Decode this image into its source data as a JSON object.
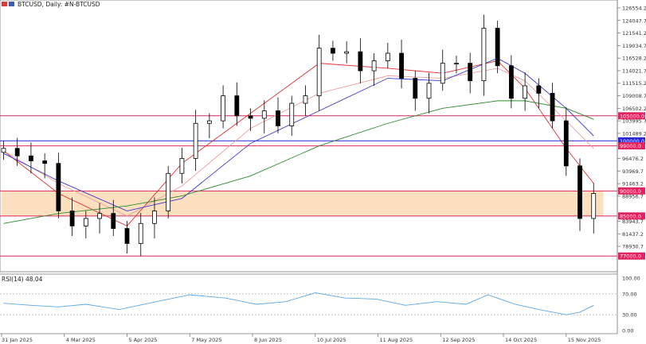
{
  "header": {
    "symbol_label": "BTCUSD, Daily:  #N-BTCUSD"
  },
  "rsi_pane": {
    "label": "RSI(14) 48.04",
    "levels": [
      "100.00",
      "70.00",
      "30.00",
      "0.00"
    ]
  },
  "colors": {
    "background": "#ffffff",
    "candles": "#000000",
    "zone_fill": "#fde0bf",
    "resistance_line": "#e0245e",
    "round_level_line": "#2626d9",
    "ma_fast": "#e03030",
    "ma_slow_pink": "#f0a0a0",
    "ma_blue": "#3a3ad0",
    "ma_green": "#2e8b2e",
    "rsi_line": "#5aa7e6"
  },
  "chart_data": {
    "type": "line",
    "title": "BTCUSD, Daily",
    "xlabel": "",
    "ylabel": "",
    "y_scale": "linear",
    "ylim": [
      74500,
      127500
    ],
    "grid": false,
    "price_ticks": [
      "126554.2",
      "124047.7",
      "121541.2",
      "119034.7",
      "116528.2",
      "114021.7",
      "111515.2",
      "109008.7",
      "106502.2",
      "103995.7",
      "101489.2",
      "96476.2",
      "93969.7",
      "91463.2",
      "88956.7",
      "83943.7",
      "81437.2",
      "78930.7"
    ],
    "date_ticks": [
      {
        "label": "31 Jan 2025",
        "x": "2025-01-31"
      },
      {
        "label": "4 Mar 2025",
        "x": "2025-03-04"
      },
      {
        "label": "5 Apr 2025",
        "x": "2025-04-05"
      },
      {
        "label": "7 May 2025",
        "x": "2025-05-07"
      },
      {
        "label": "8 Jun 2025",
        "x": "2025-06-08"
      },
      {
        "label": "10 Jul 2025",
        "x": "2025-07-10"
      },
      {
        "label": "11 Aug 2025",
        "x": "2025-08-11"
      },
      {
        "label": "12 Sep 2025",
        "x": "2025-09-12"
      },
      {
        "label": "14 Oct 2025",
        "x": "2025-10-14"
      },
      {
        "label": "15 Nov 2025",
        "x": "2025-11-15"
      }
    ],
    "horizontal_levels": [
      {
        "label": "105000.0",
        "value": 105000,
        "color": "#e0245e"
      },
      {
        "label": "100000.0",
        "value": 100000,
        "color": "#2626d9"
      },
      {
        "label": "99000.0",
        "value": 99000,
        "color": "#e0245e"
      },
      {
        "label": "90000.0",
        "value": 90000,
        "color": "#e0245e"
      },
      {
        "label": "85000.0",
        "value": 85000,
        "color": "#e0245e"
      },
      {
        "label": "77000.0",
        "value": 77000,
        "color": "#e0245e"
      }
    ],
    "zone": {
      "from": 85000,
      "to": 90000,
      "x_start": "2025-01-31",
      "x_end": "2025-12-04"
    },
    "series": [
      {
        "type": "candlestick",
        "x": [
          "2025-02-01",
          "2025-02-08",
          "2025-02-15",
          "2025-02-22",
          "2025-03-01",
          "2025-03-08",
          "2025-03-15",
          "2025-03-22",
          "2025-03-29",
          "2025-04-05",
          "2025-04-12",
          "2025-04-19",
          "2025-04-26",
          "2025-05-03",
          "2025-05-10",
          "2025-05-17",
          "2025-05-24",
          "2025-05-31",
          "2025-06-07",
          "2025-06-14",
          "2025-06-21",
          "2025-06-28",
          "2025-07-05",
          "2025-07-12",
          "2025-07-19",
          "2025-07-26",
          "2025-08-02",
          "2025-08-09",
          "2025-08-16",
          "2025-08-23",
          "2025-08-30",
          "2025-09-06",
          "2025-09-13",
          "2025-09-20",
          "2025-09-27",
          "2025-10-04",
          "2025-10-11",
          "2025-10-18",
          "2025-10-25",
          "2025-11-01",
          "2025-11-08",
          "2025-11-15",
          "2025-11-22",
          "2025-11-29"
        ],
        "close": [
          98500,
          97000,
          96000,
          95500,
          86000,
          83000,
          84500,
          85500,
          82500,
          79500,
          83500,
          86000,
          93500,
          96500,
          103500,
          104000,
          109000,
          105000,
          104500,
          106000,
          103000,
          107500,
          109000,
          118500,
          117500,
          117800,
          114000,
          116000,
          117500,
          112500,
          108500,
          111500,
          115500,
          115500,
          112000,
          122500,
          115000,
          108500,
          111000,
          109500,
          104000,
          95000,
          84500,
          89500
        ]
      },
      {
        "name": "",
        "type": "line",
        "x": [
          "2025-02-01",
          "2025-03-01",
          "2025-04-05",
          "2025-05-03",
          "2025-06-07",
          "2025-07-12",
          "2025-08-16",
          "2025-09-13",
          "2025-10-11",
          "2025-10-25",
          "2025-11-15",
          "2025-11-29"
        ],
        "values": [
          98000,
          89500,
          83000,
          95500,
          105500,
          115500,
          114500,
          113500,
          116000,
          110500,
          98500,
          91500
        ]
      },
      {
        "name": "",
        "type": "line",
        "x": [
          "2025-02-01",
          "2025-03-01",
          "2025-04-05",
          "2025-05-03",
          "2025-06-07",
          "2025-07-12",
          "2025-08-16",
          "2025-09-13",
          "2025-10-11",
          "2025-10-25",
          "2025-11-15",
          "2025-11-29"
        ],
        "values": [
          98000,
          91500,
          85000,
          91000,
          102500,
          109500,
          113000,
          112500,
          114500,
          112000,
          104000,
          98500
        ]
      },
      {
        "name": "",
        "type": "line",
        "x": [
          "2025-02-01",
          "2025-03-01",
          "2025-04-05",
          "2025-05-03",
          "2025-06-07",
          "2025-07-12",
          "2025-08-16",
          "2025-09-13",
          "2025-10-11",
          "2025-10-25",
          "2025-11-15",
          "2025-11-29"
        ],
        "values": [
          97500,
          92000,
          86000,
          88500,
          99500,
          106000,
          112500,
          112000,
          116500,
          113500,
          106500,
          101000
        ]
      },
      {
        "name": "",
        "type": "line",
        "x": [
          "2025-02-01",
          "2025-03-01",
          "2025-04-05",
          "2025-05-03",
          "2025-06-07",
          "2025-07-12",
          "2025-08-16",
          "2025-09-13",
          "2025-10-11",
          "2025-10-25",
          "2025-11-15",
          "2025-11-29"
        ],
        "values": [
          83500,
          85500,
          87000,
          89000,
          93000,
          99000,
          103500,
          106500,
          108000,
          108000,
          106500,
          104300
        ]
      },
      {
        "name": "RSI(14)",
        "type": "line",
        "pane": "rsi",
        "ylim": [
          0,
          100
        ],
        "x": [
          "2025-02-01",
          "2025-02-15",
          "2025-03-01",
          "2025-03-15",
          "2025-04-01",
          "2025-04-20",
          "2025-05-07",
          "2025-05-25",
          "2025-06-10",
          "2025-06-25",
          "2025-07-10",
          "2025-07-25",
          "2025-08-10",
          "2025-08-25",
          "2025-09-10",
          "2025-09-25",
          "2025-10-06",
          "2025-10-20",
          "2025-11-01",
          "2025-11-15",
          "2025-11-22",
          "2025-11-29"
        ],
        "values": [
          52,
          48,
          45,
          50,
          40,
          55,
          68,
          62,
          50,
          55,
          72,
          62,
          60,
          48,
          55,
          50,
          68,
          50,
          40,
          30,
          35,
          48.04
        ]
      }
    ]
  }
}
